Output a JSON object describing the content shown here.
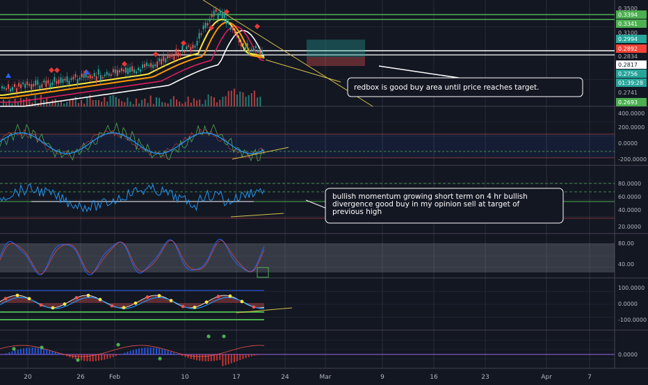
{
  "chart_data": {
    "type": "line",
    "description_free": true,
    "x_axis": {
      "tick_labels": [
        "20",
        "26",
        "Feb",
        "10",
        "17",
        "24",
        "Mar",
        "9",
        "16",
        "23",
        "Apr",
        "7"
      ]
    },
    "price_panel": {
      "price_labels": [
        "0.3500",
        "0.3394",
        "0.3341",
        "0.3100",
        "0.2994",
        "0.2892",
        "0.2834",
        "0.2817",
        "0.2756",
        "01:39:28",
        "0.2741",
        "0.2693"
      ],
      "annotation": "redbox is good buy area until price reaches target."
    },
    "cci_panel": {
      "ticks": [
        "400.0000",
        "200.0000",
        "0.0000",
        "-200.0000"
      ]
    },
    "rsi_panel": {
      "ticks": [
        "80.0000",
        "60.0000",
        "40.0000",
        "20.0000"
      ],
      "annotation": "bullish momentum growing short term on 4 hr bullish divergence good buy in my opinion sell at target of previous high"
    },
    "stoch_panel": {
      "ticks": [
        "80.00",
        "40.00"
      ]
    },
    "wave_panel": {
      "ticks": [
        "100.0000",
        "0.0000",
        "-100.0000"
      ]
    },
    "momentum_panel": {
      "ticks": [
        "0.0000"
      ]
    },
    "colors": {
      "background": "#131722",
      "grid": "#2a2e39",
      "price_green": "#26a69a",
      "support_line": "#ffffff",
      "trend_line": "#d8c34a",
      "cci_blue": "#2196f3",
      "rsi_blue": "#2196f3",
      "stoch_band": "#787b86",
      "ema_yellow": "#ffeb3b",
      "ema_orange": "#ff9800",
      "ema_pink": "#e91e63"
    }
  }
}
